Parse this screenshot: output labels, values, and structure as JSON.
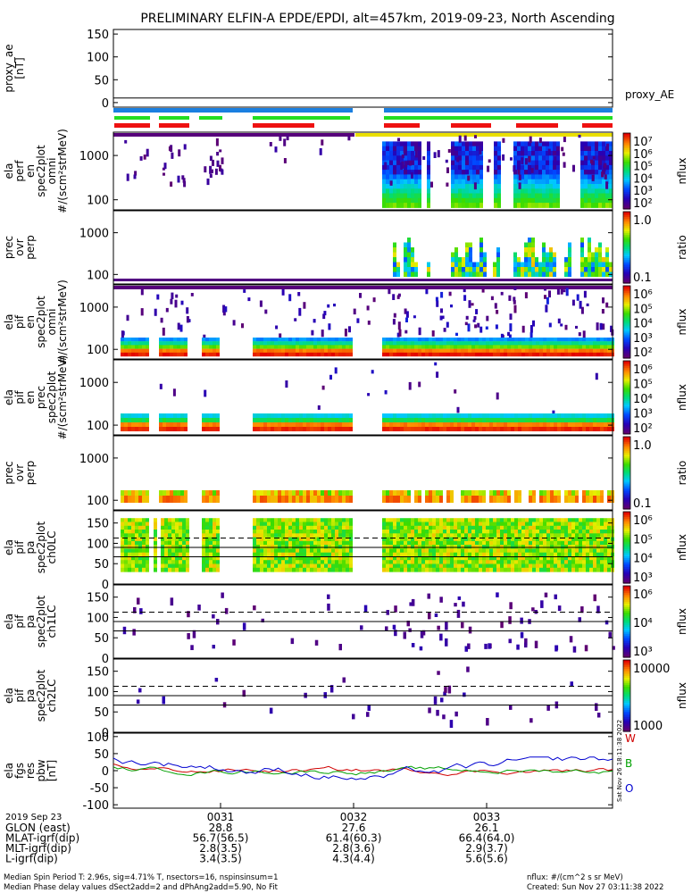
{
  "title": "PRELIMINARY ELFIN-A EPDE/EPDI, alt=457km, 2019-09-23, North Ascending",
  "timestamp_side": "Sat Nov 26 18:11:38 2022",
  "footer": {
    "line1": "Median Spin Period T: 2.96s, sig=4.71% T, nsectors=16, nspinsinsum=1",
    "line2": "Median Phase delay values dSect2add=2 and dPhAng2add=5.90, No Fit",
    "right1": "nflux: #/(cm^2 s sr MeV)",
    "right2": "Created: Sun Nov 27 03:11:38 2022"
  },
  "time_axis": {
    "date": "2019 Sep 23",
    "ticks": [
      "0031",
      "0032",
      "0033"
    ],
    "rows": [
      {
        "label": "GLON (east)",
        "values": [
          "28.8",
          "27.6",
          "26.1"
        ]
      },
      {
        "label": "MLAT-igrf(dip)",
        "values": [
          "56.7(56.5)",
          "61.4(60.3)",
          "66.4(64.0)"
        ]
      },
      {
        "label": "MLT-igrf(dip)",
        "values": [
          "2.8(3.5)",
          "2.8(3.6)",
          "2.9(3.7)"
        ]
      },
      {
        "label": "L-igrf(dip)",
        "values": [
          "3.4(3.5)",
          "4.3(4.4)",
          "5.6(5.6)"
        ]
      }
    ]
  },
  "chart_data": [
    {
      "type": "line",
      "panel": "proxy_ae",
      "ylabel": [
        "proxy_ae",
        "[nT]"
      ],
      "yticks": [
        "150",
        "100",
        "50",
        "0"
      ],
      "ylim": [
        -10,
        160
      ],
      "series": [
        {
          "name": "proxy_AE",
          "values": [
            10
          ]
        }
      ]
    },
    {
      "type": "heatmap",
      "panel": "ela perf en omni",
      "ylabel": [
        "ela",
        "perf",
        "en",
        "spec2plot",
        "omni",
        "#/(scm²strMeV)"
      ],
      "yticks": [
        "1000",
        "100"
      ],
      "scale": "log",
      "colorbar": {
        "ticks": [
          "10⁷",
          "10⁶",
          "10⁵",
          "10⁴",
          "10³",
          "10²"
        ],
        "label": "nflux"
      }
    },
    {
      "type": "heatmap",
      "panel": "prec ovr perp (e)",
      "ylabel": [
        "prec",
        "ovr",
        "perp"
      ],
      "yticks": [
        "1000",
        "100"
      ],
      "scale": "log",
      "colorbar": {
        "ticks": [
          "1.0",
          "0.1"
        ],
        "label": "ratio"
      }
    },
    {
      "type": "heatmap",
      "panel": "ela pif en omni",
      "ylabel": [
        "ela",
        "pif",
        "en",
        "spec2plot",
        "omni",
        "#/(scm²strMeV)"
      ],
      "yticks": [
        "1000",
        "100"
      ],
      "scale": "log",
      "colorbar": {
        "ticks": [
          "10⁶",
          "10⁵",
          "10⁴",
          "10³",
          "10²"
        ],
        "label": "nflux"
      }
    },
    {
      "type": "heatmap",
      "panel": "ela pif en prec",
      "ylabel": [
        "ela",
        "pif",
        "en",
        "prec",
        "spec2plot",
        "#/(scm²strMeV)"
      ],
      "yticks": [
        "1000",
        "100"
      ],
      "scale": "log",
      "colorbar": {
        "ticks": [
          "10⁶",
          "10⁵",
          "10⁴",
          "10³",
          "10²"
        ],
        "label": "nflux"
      }
    },
    {
      "type": "heatmap",
      "panel": "prec ovr perp (i)",
      "ylabel": [
        "prec",
        "ovr",
        "perp"
      ],
      "yticks": [
        "1000",
        "100"
      ],
      "scale": "log",
      "colorbar": {
        "ticks": [
          "1.0",
          "0.1"
        ],
        "label": "ratio"
      }
    },
    {
      "type": "heatmap",
      "panel": "ela pif pa ch0LC",
      "ylabel": [
        "ela",
        "pif",
        "pa",
        "spec2plot",
        "ch0LC"
      ],
      "yticks": [
        "150",
        "100",
        "50",
        "0"
      ],
      "ylim": [
        0,
        180
      ],
      "lines": [
        {
          "y": 113,
          "style": "dashed"
        },
        {
          "y": 90,
          "style": "solid"
        },
        {
          "y": 67,
          "style": "solid"
        }
      ],
      "colorbar": {
        "ticks": [
          "10⁶",
          "10⁵",
          "10⁴",
          "10³"
        ],
        "label": "nflux"
      }
    },
    {
      "type": "heatmap",
      "panel": "ela pif pa ch1LC",
      "ylabel": [
        "ela",
        "pif",
        "pa",
        "spec2plot",
        "ch1LC"
      ],
      "yticks": [
        "150",
        "100",
        "50",
        "0"
      ],
      "ylim": [
        0,
        180
      ],
      "lines": [
        {
          "y": 113,
          "style": "dashed"
        },
        {
          "y": 90,
          "style": "solid"
        },
        {
          "y": 67,
          "style": "solid"
        }
      ],
      "colorbar": {
        "ticks": [
          "10⁶",
          "10⁴",
          "10³"
        ],
        "label": "nflux"
      }
    },
    {
      "type": "heatmap",
      "panel": "ela pif pa ch2LC",
      "ylabel": [
        "ela",
        "pif",
        "pa",
        "spec2plot",
        "ch2LC"
      ],
      "yticks": [
        "150",
        "100",
        "50",
        "0"
      ],
      "ylim": [
        0,
        180
      ],
      "lines": [
        {
          "y": 113,
          "style": "dashed"
        },
        {
          "y": 90,
          "style": "solid"
        },
        {
          "y": 67,
          "style": "solid"
        }
      ],
      "colorbar": {
        "ticks": [
          "10000",
          "1000"
        ],
        "label": "nflux"
      }
    },
    {
      "type": "line",
      "panel": "ela fgs res pbw",
      "ylabel": [
        "ela",
        "fgs",
        "res",
        "pbw",
        "[nT]"
      ],
      "yticks": [
        "100",
        "50",
        "0",
        "-50",
        "-100"
      ],
      "ylim": [
        -110,
        110
      ],
      "series": [
        {
          "name": "W",
          "color": "#d00000"
        },
        {
          "name": "B",
          "color": "#00a000"
        },
        {
          "name": "O",
          "color": "#0000d0"
        }
      ]
    }
  ]
}
